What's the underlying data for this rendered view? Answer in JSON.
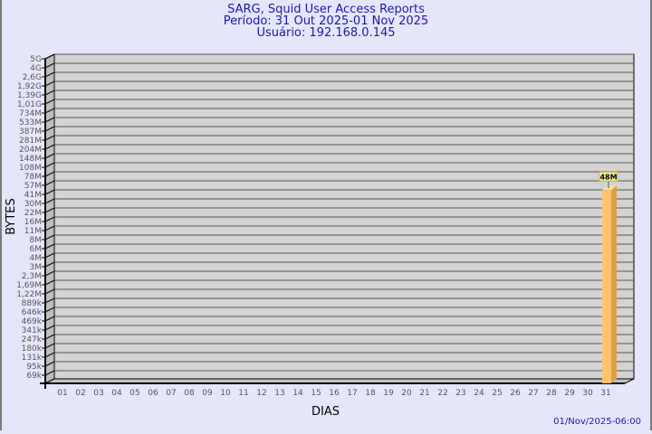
{
  "header": {
    "title": "SARG, Squid User Access Reports",
    "period": "Período: 31 Out 2025-01 Nov 2025",
    "user": "Usuário: 192.168.0.145"
  },
  "footer": {
    "timestamp": "01/Nov/2025-06:00"
  },
  "colors": {
    "background": "#e6e6fa",
    "plot": "#d3d3d3",
    "bar": "#ffc46b",
    "bar_side": "#dba047",
    "title": "#1a1aa6"
  },
  "chart_data": {
    "type": "bar",
    "xlabel": "DIAS",
    "ylabel": "BYTES",
    "y_scale": "log",
    "grid": true,
    "categories": [
      "01",
      "02",
      "03",
      "04",
      "05",
      "06",
      "07",
      "08",
      "09",
      "10",
      "11",
      "12",
      "13",
      "14",
      "15",
      "16",
      "17",
      "18",
      "19",
      "20",
      "21",
      "22",
      "23",
      "24",
      "25",
      "26",
      "27",
      "28",
      "29",
      "30",
      "31"
    ],
    "y_ticks": [
      "5G",
      "4G",
      "2,6G",
      "1,92G",
      "1,39G",
      "1,01G",
      "734M",
      "533M",
      "387M",
      "281M",
      "204M",
      "148M",
      "108M",
      "78M",
      "57M",
      "41M",
      "30M",
      "22M",
      "16M",
      "11M",
      "8M",
      "6M",
      "4M",
      "3M",
      "2,3M",
      "1,69M",
      "1,22M",
      "889k",
      "646k",
      "469k",
      "341k",
      "247k",
      "180k",
      "131k",
      "95k",
      "69k"
    ],
    "series": [
      {
        "values": [
          null,
          null,
          null,
          null,
          null,
          null,
          null,
          null,
          null,
          null,
          null,
          null,
          null,
          null,
          null,
          null,
          null,
          null,
          null,
          null,
          null,
          null,
          null,
          null,
          null,
          null,
          null,
          null,
          null,
          null,
          48000000
        ]
      }
    ],
    "data_labels": {
      "31": "48M"
    }
  }
}
